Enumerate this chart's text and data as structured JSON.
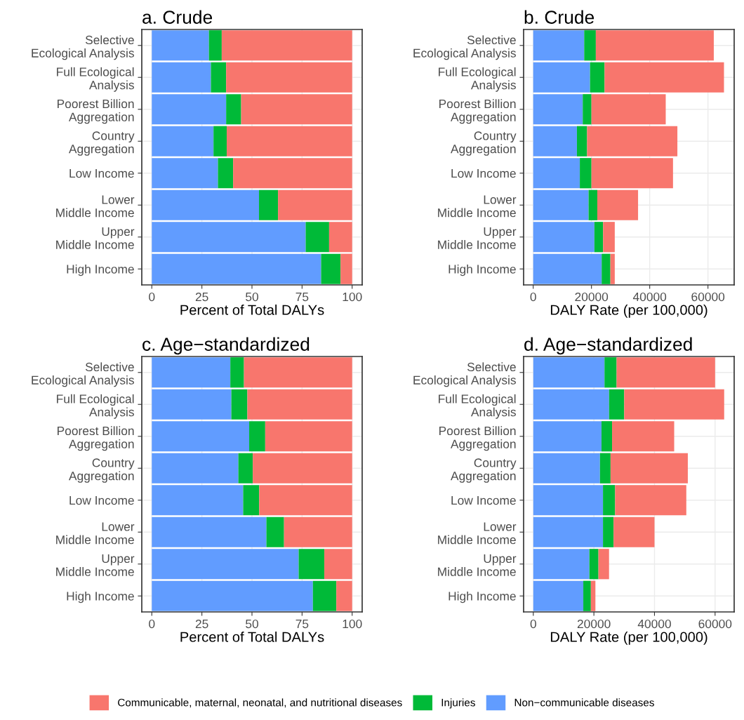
{
  "chart_data": [
    {
      "type": "bar",
      "orientation": "horizontal",
      "stacked": true,
      "title": "a. Crude",
      "xlabel": "Percent of Total DALYs",
      "categories": [
        "Selective\nEcological Analysis",
        "Full Ecological\nAnalysis",
        "Poorest Billion\nAggregation",
        "Country\nAggregation",
        "Low Income",
        "Lower\nMiddle Income",
        "Upper\nMiddle Income",
        "High Income"
      ],
      "series": [
        {
          "name": "Non−communicable diseases",
          "color": "#619cff",
          "values": [
            28.5,
            29.5,
            37.1,
            30.8,
            33.0,
            53.5,
            76.8,
            84.5
          ]
        },
        {
          "name": "Injuries",
          "color": "#00ba38",
          "values": [
            6.4,
            7.6,
            7.5,
            6.6,
            7.6,
            9.5,
            11.7,
            9.7
          ]
        },
        {
          "name": "Communicable, maternal, neonatal, and nutritional diseases",
          "color": "#f8766d",
          "values": [
            65.1,
            62.9,
            55.4,
            62.6,
            59.4,
            37.0,
            11.5,
            5.8
          ]
        }
      ],
      "xlim": [
        -5,
        105
      ],
      "xticks": [
        0,
        25,
        50,
        75,
        100
      ],
      "grid": true,
      "legend": "bottom"
    },
    {
      "type": "bar",
      "orientation": "horizontal",
      "stacked": true,
      "title": "b. Crude",
      "xlabel": "DALY Rate (per 100,000)",
      "categories": [
        "Selective\nEcological Analysis",
        "Full Ecological\nAnalysis",
        "Poorest Billion\nAggregation",
        "Country\nAggregation",
        "Low Income",
        "Lower\nMiddle Income",
        "Upper\nMiddle Income",
        "High Income"
      ],
      "series": [
        {
          "color": "#619cff",
          "values": [
            17500,
            19500,
            17000,
            15000,
            16000,
            19000,
            21000,
            23500
          ]
        },
        {
          "color": "#00ba38",
          "values": [
            4000,
            5000,
            3000,
            3500,
            4000,
            3000,
            3000,
            3000
          ]
        },
        {
          "color": "#f8766d",
          "values": [
            40500,
            41000,
            25500,
            31000,
            28000,
            14000,
            4000,
            1500
          ]
        }
      ],
      "xlim": [
        -3300,
        69000
      ],
      "xticks": [
        0,
        20000,
        40000,
        60000
      ],
      "grid": true
    },
    {
      "type": "bar",
      "orientation": "horizontal",
      "stacked": true,
      "title": "c. Age−standardized",
      "xlabel": "Percent of Total DALYs",
      "categories": [
        "Selective\nEcological Analysis",
        "Full Ecological\nAnalysis",
        "Poorest Billion\nAggregation",
        "Country\nAggregation",
        "Low Income",
        "Lower\nMiddle Income",
        "Upper\nMiddle Income",
        "High Income"
      ],
      "series": [
        {
          "color": "#619cff",
          "values": [
            39.2,
            39.7,
            48.6,
            43.2,
            45.6,
            57.2,
            73.3,
            80.4
          ]
        },
        {
          "color": "#00ba38",
          "values": [
            6.8,
            8.0,
            8.0,
            7.2,
            8.0,
            8.8,
            12.8,
            11.7
          ]
        },
        {
          "color": "#f8766d",
          "values": [
            54.0,
            52.3,
            43.4,
            49.6,
            46.4,
            34.0,
            13.9,
            7.9
          ]
        }
      ],
      "xlim": [
        -5,
        105
      ],
      "xticks": [
        0,
        25,
        50,
        75,
        100
      ],
      "grid": true
    },
    {
      "type": "bar",
      "orientation": "horizontal",
      "stacked": true,
      "title": "d. Age−standardized",
      "xlabel": "DALY Rate (per 100,000)",
      "categories": [
        "Selective\nEcological Analysis",
        "Full Ecological\nAnalysis",
        "Poorest Billion\nAggregation",
        "Country\nAggregation",
        "Low Income",
        "Lower\nMiddle Income",
        "Upper\nMiddle Income",
        "High Income"
      ],
      "series": [
        {
          "color": "#619cff",
          "values": [
            23500,
            25000,
            22500,
            22000,
            23000,
            23000,
            18500,
            16500
          ]
        },
        {
          "color": "#00ba38",
          "values": [
            4000,
            5000,
            3500,
            3500,
            4000,
            3500,
            3000,
            2500
          ]
        },
        {
          "color": "#f8766d",
          "values": [
            32500,
            33000,
            20500,
            25500,
            23500,
            13500,
            3500,
            1500
          ]
        }
      ],
      "xlim": [
        -3200,
        66300
      ],
      "xticks": [
        0,
        20000,
        40000,
        60000
      ],
      "grid": true
    }
  ]
}
